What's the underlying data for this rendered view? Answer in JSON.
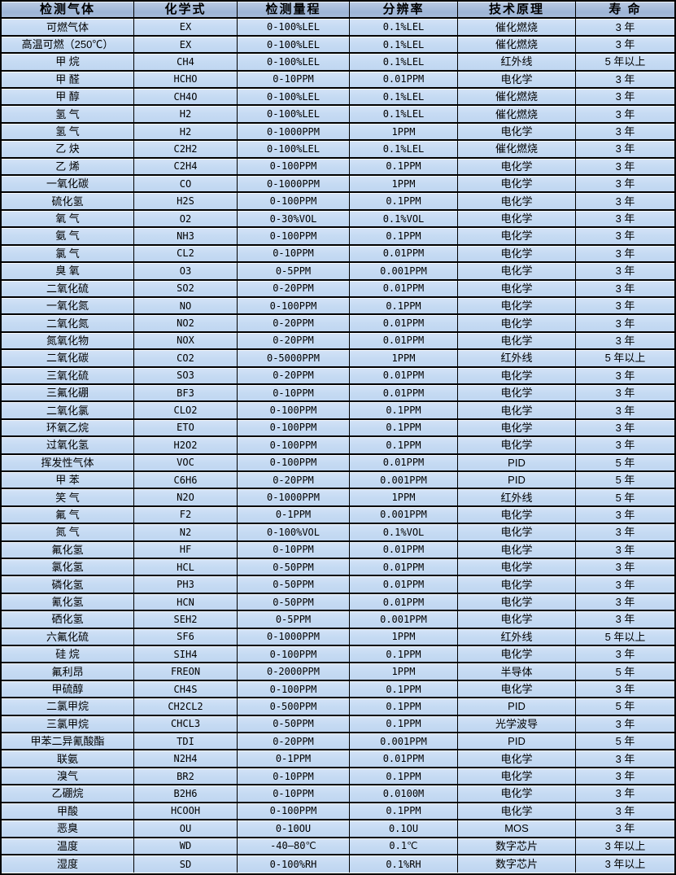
{
  "colors": {
    "header_bg": "#a3b8d8",
    "row_bg": "#c6dbf3",
    "grid_border": "#000000",
    "text": "#000000"
  },
  "table": {
    "columns": [
      "检测气体",
      "化学式",
      "检测量程",
      "分辨率",
      "技术原理",
      "寿 命"
    ],
    "rows": [
      [
        "可燃气体",
        "EX",
        "0-100%LEL",
        "0.1%LEL",
        "催化燃烧",
        "3 年"
      ],
      [
        "高温可燃（250℃）",
        "EX",
        "0-100%LEL",
        "0.1%LEL",
        "催化燃烧",
        "3 年"
      ],
      [
        "甲 烷",
        "CH4",
        "0-100%LEL",
        "0.1%LEL",
        "红外线",
        "5 年以上"
      ],
      [
        "甲 醛",
        "HCHO",
        "0-10PPM",
        "0.01PPM",
        "电化学",
        "3 年"
      ],
      [
        "甲 醇",
        "CH4O",
        "0-100%LEL",
        "0.1%LEL",
        "催化燃烧",
        "3 年"
      ],
      [
        "氢 气",
        "H2",
        "0-100%LEL",
        "0.1%LEL",
        "催化燃烧",
        "3 年"
      ],
      [
        "氢 气",
        "H2",
        "0-1000PPM",
        "1PPM",
        "电化学",
        "3 年"
      ],
      [
        "乙 炔",
        "C2H2",
        "0-100%LEL",
        "0.1%LEL",
        "催化燃烧",
        "3 年"
      ],
      [
        "乙 烯",
        "C2H4",
        "0-100PPM",
        "0.1PPM",
        "电化学",
        "3 年"
      ],
      [
        "一氧化碳",
        "CO",
        "0-1000PPM",
        "1PPM",
        "电化学",
        "3 年"
      ],
      [
        "硫化氢",
        "H2S",
        "0-100PPM",
        "0.1PPM",
        "电化学",
        "3 年"
      ],
      [
        "氧 气",
        "O2",
        "0-30%VOL",
        "0.1%VOL",
        "电化学",
        "3 年"
      ],
      [
        "氨 气",
        "NH3",
        "0-100PPM",
        "0.1PPM",
        "电化学",
        "3 年"
      ],
      [
        "氯 气",
        "CL2",
        "0-10PPM",
        "0.01PPM",
        "电化学",
        "3 年"
      ],
      [
        "臭 氧",
        "O3",
        "0-5PPM",
        "0.001PPM",
        "电化学",
        "3 年"
      ],
      [
        "二氧化硫",
        "SO2",
        "0-20PPM",
        "0.01PPM",
        "电化学",
        "3 年"
      ],
      [
        "一氧化氮",
        "NO",
        "0-100PPM",
        "0.1PPM",
        "电化学",
        "3 年"
      ],
      [
        "二氧化氮",
        "NO2",
        "0-20PPM",
        "0.01PPM",
        "电化学",
        "3 年"
      ],
      [
        "氮氧化物",
        "NOX",
        "0-20PPM",
        "0.01PPM",
        "电化学",
        "3 年"
      ],
      [
        "二氧化碳",
        "CO2",
        "0-5000PPM",
        "1PPM",
        "红外线",
        "5 年以上"
      ],
      [
        "三氧化硫",
        "SO3",
        "0-20PPM",
        "0.01PPM",
        "电化学",
        "3 年"
      ],
      [
        "三氟化硼",
        "BF3",
        "0-10PPM",
        "0.01PPM",
        "电化学",
        "3 年"
      ],
      [
        "二氧化氯",
        "CLO2",
        "0-100PPM",
        "0.1PPM",
        "电化学",
        "3 年"
      ],
      [
        "环氧乙烷",
        "ETO",
        "0-100PPM",
        "0.1PPM",
        "电化学",
        "3 年"
      ],
      [
        "过氧化氢",
        "H2O2",
        "0-100PPM",
        "0.1PPM",
        "电化学",
        "3 年"
      ],
      [
        "挥发性气体",
        "VOC",
        "0-100PPM",
        "0.01PPM",
        "PID",
        "5 年"
      ],
      [
        "甲 苯",
        "C6H6",
        "0-20PPM",
        "0.001PPM",
        "PID",
        "5 年"
      ],
      [
        "笑 气",
        "N2O",
        "0-1000PPM",
        "1PPM",
        "红外线",
        "5 年"
      ],
      [
        "氟 气",
        "F2",
        "0-1PPM",
        "0.001PPM",
        "电化学",
        "3 年"
      ],
      [
        "氮 气",
        "N2",
        "0-100%VOL",
        "0.1%VOL",
        "电化学",
        "3 年"
      ],
      [
        "氟化氢",
        "HF",
        "0-10PPM",
        "0.01PPM",
        "电化学",
        "3 年"
      ],
      [
        "氯化氢",
        "HCL",
        "0-50PPM",
        "0.01PPM",
        "电化学",
        "3 年"
      ],
      [
        "磷化氢",
        "PH3",
        "0-50PPM",
        "0.01PPM",
        "电化学",
        "3 年"
      ],
      [
        "氰化氢",
        "HCN",
        "0-50PPM",
        "0.01PPM",
        "电化学",
        "3 年"
      ],
      [
        "硒化氢",
        "SEH2",
        "0-5PPM",
        "0.001PPM",
        "电化学",
        "3 年"
      ],
      [
        "六氟化硫",
        "SF6",
        "0-1000PPM",
        "1PPM",
        "红外线",
        "5 年以上"
      ],
      [
        "硅 烷",
        "SIH4",
        "0-100PPM",
        "0.1PPM",
        "电化学",
        "3 年"
      ],
      [
        "氟利昂",
        "FREON",
        "0-2000PPM",
        "1PPM",
        "半导体",
        "5 年"
      ],
      [
        "甲硫醇",
        "CH4S",
        "0-100PPM",
        "0.1PPM",
        "电化学",
        "3 年"
      ],
      [
        "二氯甲烷",
        "CH2CL2",
        "0-500PPM",
        "0.1PPM",
        "PID",
        "5 年"
      ],
      [
        "三氯甲烷",
        "CHCL3",
        "0-50PPM",
        "0.1PPM",
        "光学波导",
        "3 年"
      ],
      [
        "甲苯二异氰酸酯",
        "TDI",
        "0-20PPM",
        "0.001PPM",
        "PID",
        "5 年"
      ],
      [
        "联氨",
        "N2H4",
        "0-1PPM",
        "0.01PPM",
        "电化学",
        "3 年"
      ],
      [
        "溴气",
        "BR2",
        "0-10PPM",
        "0.1PPM",
        "电化学",
        "3 年"
      ],
      [
        "乙硼烷",
        "B2H6",
        "0-10PPM",
        "0.0100M",
        "电化学",
        "3 年"
      ],
      [
        "甲酸",
        "HCOOH",
        "0-100PPM",
        "0.1PPM",
        "电化学",
        "3 年"
      ],
      [
        "恶臭",
        "OU",
        "0-10OU",
        "0.1OU",
        "MOS",
        "3 年"
      ],
      [
        "温度",
        "WD",
        "-40—80℃",
        "0.1℃",
        "数字芯片",
        "3 年以上"
      ],
      [
        "湿度",
        "SD",
        "0-100%RH",
        "0.1%RH",
        "数字芯片",
        "3 年以上"
      ]
    ]
  }
}
